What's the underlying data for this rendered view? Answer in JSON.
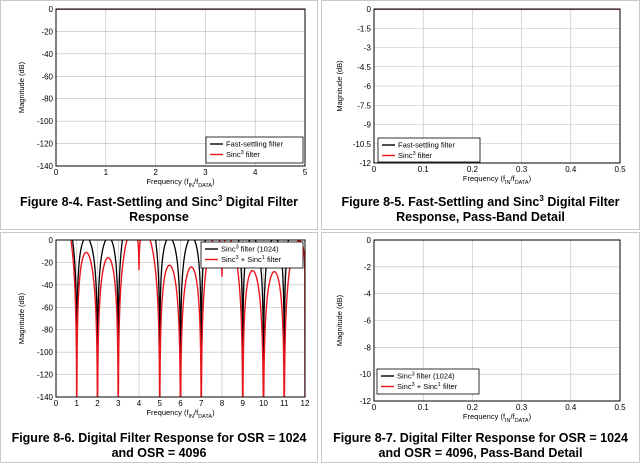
{
  "chart_data": [
    {
      "type": "line",
      "caption_prefix": "Figure 8-4. Fast-Settling and Sinc",
      "caption_sup": "3",
      "caption_suffix": " Digital Filter Response",
      "xlabel": "Frequency (f",
      "xlabel_sub1": "IN",
      "xlabel_mid": "/f",
      "xlabel_sub2": "DATA",
      "xlabel_end": ")",
      "ylabel": "Magnitude (dB)",
      "xlim": [
        0,
        5
      ],
      "ylim": [
        -140,
        0
      ],
      "xticks": [
        "0",
        "1",
        "2",
        "3",
        "4",
        "5"
      ],
      "yticks": [
        "0",
        "-20",
        "-40",
        "-60",
        "-80",
        "-100",
        "-120",
        "-140"
      ],
      "legend_position": "bottom-right",
      "series": [
        {
          "name": "Fast-settling filter",
          "color": "#000000",
          "model": "sinc",
          "order": 1,
          "osr": 1
        },
        {
          "name_prefix": "Sinc",
          "name_sup": "3",
          "name_suffix": " filter",
          "color": "#e8161c",
          "model": "sinc",
          "order": 3,
          "osr": 1
        }
      ]
    },
    {
      "type": "line",
      "caption_prefix": "Figure 8-5. Fast-Settling and Sinc",
      "caption_sup": "3",
      "caption_suffix": " Digital Filter Response, Pass-Band Detail",
      "xlabel": "Frequency (f",
      "xlabel_sub1": "IN",
      "xlabel_mid": "/f",
      "xlabel_sub2": "DATA",
      "xlabel_end": ")",
      "ylabel": "Magnitude (dB)",
      "xlim": [
        0,
        0.5
      ],
      "ylim": [
        -12,
        0
      ],
      "xticks": [
        "0",
        "0.1",
        "0.2",
        "0.3",
        "0.4",
        "0.5"
      ],
      "yticks": [
        "0",
        "-1.5",
        "-3",
        "-4.5",
        "-6",
        "-7.5",
        "-9",
        "-10.5",
        "-12"
      ],
      "legend_position": "bottom-left",
      "series": [
        {
          "name": "Fast-settling filter",
          "color": "#000000",
          "model": "sinc",
          "order": 1,
          "osr": 1
        },
        {
          "name_prefix": "Sinc",
          "name_sup": "3",
          "name_suffix": " filter",
          "color": "#e8161c",
          "model": "sinc",
          "order": 3,
          "osr": 1
        }
      ]
    },
    {
      "type": "line",
      "caption_prefix": "Figure 8-6. Digital Filter Response for OSR = 1024 and OSR = 4096",
      "caption_sup": "",
      "caption_suffix": "",
      "xlabel": "Frequency (f",
      "xlabel_sub1": "IN",
      "xlabel_mid": "/f",
      "xlabel_sub2": "DATA",
      "xlabel_end": ")",
      "ylabel": "Magnitude (dB)",
      "xlim": [
        0,
        12
      ],
      "ylim": [
        -140,
        0
      ],
      "xticks": [
        "0",
        "1",
        "2",
        "3",
        "4",
        "5",
        "6",
        "7",
        "8",
        "9",
        "10",
        "11",
        "12"
      ],
      "yticks": [
        "0",
        "-20",
        "-40",
        "-60",
        "-80",
        "-100",
        "-120",
        "-140"
      ],
      "legend_position": "top-right",
      "series": [
        {
          "name_prefix": "Sinc",
          "name_sup": "3",
          "name_suffix": " filter (1024)",
          "color": "#000000",
          "model": "sinc",
          "order": 3,
          "osr": 4
        },
        {
          "name_prefix": "Sinc",
          "name_sup": "3",
          "name_suffix": " + Sinc",
          "name_sup2": "1",
          "name_suffix2": " filter",
          "color": "#e8161c",
          "model": "combo"
        }
      ]
    },
    {
      "type": "line",
      "caption_prefix": "Figure 8-7. Digital Filter Response for OSR = 1024 and OSR = 4096, Pass-Band Detail",
      "caption_sup": "",
      "caption_suffix": "",
      "xlabel": "Frequency (f",
      "xlabel_sub1": "IN",
      "xlabel_mid": "/f",
      "xlabel_sub2": "DATA",
      "xlabel_end": ")",
      "ylabel": "Magnitude (dB)",
      "xlim": [
        0,
        0.5
      ],
      "ylim": [
        -12,
        0
      ],
      "xticks": [
        "0",
        "0.1",
        "0.2",
        "0.3",
        "0.4",
        "0.5"
      ],
      "yticks": [
        "0",
        "-2",
        "-4",
        "-6",
        "-8",
        "-10",
        "-12"
      ],
      "legend_position": "bottom-left",
      "series": [
        {
          "name_prefix": "Sinc",
          "name_sup": "3",
          "name_suffix": " filter (1024)",
          "color": "#000000",
          "model": "sinc",
          "order": 3,
          "osr": 4
        },
        {
          "name_prefix": "Sinc",
          "name_sup": "3",
          "name_suffix": " + Sinc",
          "name_sup2": "1",
          "name_suffix2": " filter",
          "color": "#e8161c",
          "model": "combo"
        }
      ]
    }
  ]
}
